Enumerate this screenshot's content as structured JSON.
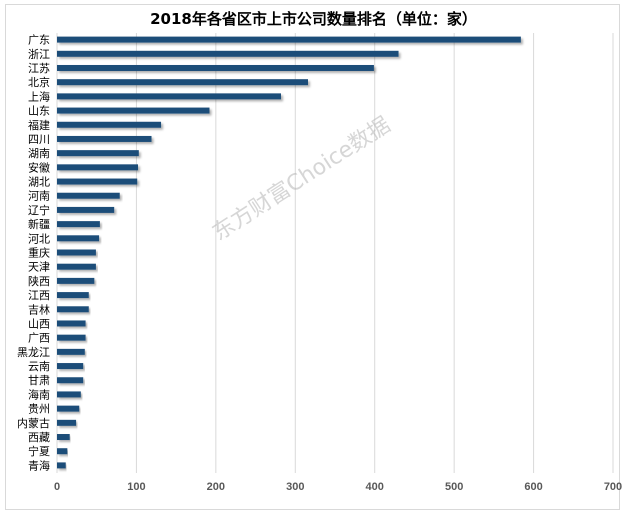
{
  "chart_data": {
    "type": "bar",
    "orientation": "horizontal",
    "title": "2018年各省区市上市公司数量排名（单位：家）",
    "categories": [
      "广东",
      "浙江",
      "江苏",
      "北京",
      "上海",
      "山东",
      "福建",
      "四川",
      "湖南",
      "安徽",
      "湖北",
      "河南",
      "辽宁",
      "新疆",
      "河北",
      "重庆",
      "天津",
      "陕西",
      "江西",
      "吉林",
      "山西",
      "广西",
      "黑龙江",
      "云南",
      "甘肃",
      "海南",
      "贵州",
      "内蒙古",
      "西藏",
      "宁夏",
      "青海"
    ],
    "values": [
      584,
      430,
      399,
      316,
      282,
      192,
      131,
      119,
      103,
      102,
      101,
      79,
      72,
      54,
      53,
      49,
      49,
      47,
      40,
      40,
      36,
      36,
      35,
      33,
      33,
      30,
      28,
      24,
      16,
      13,
      11
    ],
    "xlim": [
      0,
      700
    ],
    "xticks": [
      0,
      100,
      200,
      300,
      400,
      500,
      600,
      700
    ],
    "grid": true,
    "bar_color": "#1f4e79",
    "watermark": "东方财富Choice数据"
  }
}
